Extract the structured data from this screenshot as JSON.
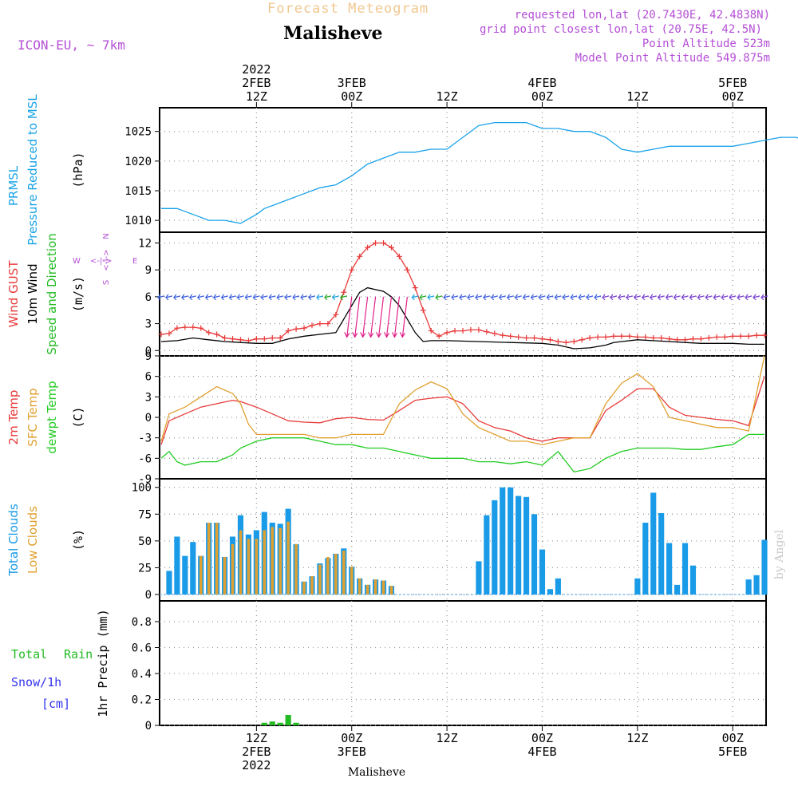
{
  "header": {
    "app_title": "Forecast Meteogram",
    "location": "Malisheve",
    "model": "ICON-EU,  ~ 7km",
    "requested": "requested lon,lat (20.7430E, 42.4838N)",
    "grid_point": "grid point closest lon,lat (20.75E, 42.5N)",
    "point_alt": "Point Altitude 523m",
    "model_alt": "Model Point Altitude 549.875m"
  },
  "footer": {
    "location": "Malisheve",
    "watermark": "by Angel"
  },
  "colors": {
    "pressure": "#1aa3e8",
    "gust": "#e83a3a",
    "wind": "#000000",
    "dir": "#22bb22",
    "temp2m": "#e83a3a",
    "sfc": "#e0a030",
    "dewpt": "#22cc22",
    "cloud_total": "#1a9be8",
    "cloud_low": "#e0a030",
    "rain": "#22bb22",
    "snow": "#3333ee",
    "title": "#f0c890",
    "info": "#b44fd6",
    "compass": "#b44fd6"
  },
  "time_axis": {
    "top_ticks": [
      {
        "x": 12,
        "lines": [
          "2022",
          "2FEB",
          "12Z"
        ]
      },
      {
        "x": 24,
        "lines": [
          "3FEB",
          "00Z"
        ]
      },
      {
        "x": 36,
        "lines": [
          "12Z"
        ]
      },
      {
        "x": 48,
        "lines": [
          "4FEB",
          "00Z"
        ]
      },
      {
        "x": 60,
        "lines": [
          "12Z"
        ]
      },
      {
        "x": 72,
        "lines": [
          "5FEB",
          "00Z"
        ]
      }
    ],
    "bottom_ticks": [
      {
        "x": 12,
        "lines": [
          "12Z",
          "2FEB",
          "2022"
        ]
      },
      {
        "x": 24,
        "lines": [
          "00Z",
          "3FEB"
        ]
      },
      {
        "x": 36,
        "lines": [
          "12Z"
        ]
      },
      {
        "x": 48,
        "lines": [
          "00Z",
          "4FEB"
        ]
      },
      {
        "x": 60,
        "lines": [
          "12Z"
        ]
      },
      {
        "x": 72,
        "lines": [
          "00Z",
          "5FEB"
        ]
      }
    ]
  },
  "panels": [
    {
      "id": "pressure",
      "labels": [
        {
          "text": "PRMSL",
          "color": "#1aa3e8"
        },
        {
          "text": "Pressure Reduced to MSL",
          "color": "#1aa3e8"
        }
      ],
      "unit": "(hPa)",
      "yticks": [
        "1010",
        "1015",
        "1020",
        "1025"
      ]
    },
    {
      "id": "wind",
      "labels": [
        {
          "text": "Wind GUST",
          "color": "#e83a3a"
        },
        {
          "text": "10m Wind",
          "color": "#000000"
        },
        {
          "text": "Speed and Direction",
          "color": "#22bb22"
        }
      ],
      "unit": "(m/s)",
      "yticks": [
        "0",
        "3",
        "6",
        "9",
        "12"
      ],
      "compass": {
        "n": "N",
        "s": "S",
        "e": "E",
        "w": "W",
        "arrow": "<-|->"
      }
    },
    {
      "id": "temp",
      "labels": [
        {
          "text": "2m Temp",
          "color": "#e83a3a"
        },
        {
          "text": "SFC Temp",
          "color": "#e0a030"
        },
        {
          "text": "dewpt Temp",
          "color": "#22cc22"
        }
      ],
      "unit": "(C)",
      "yticks": [
        "-9",
        "-6",
        "-3",
        "0",
        "3",
        "6",
        "9"
      ]
    },
    {
      "id": "clouds",
      "labels": [
        {
          "text": "Total Clouds",
          "color": "#1a9be8"
        },
        {
          "text": "Low Clouds",
          "color": "#e0a030"
        }
      ],
      "unit": "(%)",
      "yticks": [
        "0",
        "25",
        "50",
        "75",
        "100"
      ]
    },
    {
      "id": "precip",
      "labels": [
        {
          "text": "Total",
          "color": "#22bb22"
        },
        {
          "text": "Rain",
          "color": "#22bb22"
        },
        {
          "text": "Snow/1h",
          "color": "#3333ee"
        },
        {
          "text": "[cm]",
          "color": "#3333ee"
        }
      ],
      "unit": "1hr Precip (mm)",
      "yticks": [
        "0",
        "0.2",
        "0.4",
        "0.6",
        "0.8"
      ]
    }
  ],
  "chart_data": [
    {
      "type": "line",
      "name": "pressure",
      "x_unit": "hours since 2022-02-02 00Z",
      "ylim": [
        1008,
        1029
      ],
      "x": [
        0,
        2,
        4,
        6,
        8,
        10,
        12,
        13,
        14,
        16,
        18,
        20,
        22,
        24,
        26,
        28,
        30,
        32,
        34,
        36,
        38,
        40,
        42,
        44,
        46,
        48,
        50,
        52,
        54,
        56,
        58,
        60,
        62,
        64,
        66,
        72,
        74,
        76,
        78,
        80,
        82,
        84,
        86
      ],
      "values": [
        1012,
        1012,
        1011,
        1010,
        1010,
        1009.5,
        1011,
        1012,
        1012.5,
        1013.5,
        1014.5,
        1015.5,
        1016,
        1017.5,
        1019.5,
        1020.5,
        1021.5,
        1021.5,
        1022,
        1022,
        1024,
        1026,
        1026.5,
        1026.5,
        1026.5,
        1025.5,
        1025.5,
        1025,
        1025,
        1024,
        1022,
        1021.5,
        1022,
        1022.5,
        1022.5,
        1022.5,
        1023,
        1023.5,
        1024,
        1024,
        1023,
        1022.5,
        1022.5
      ]
    },
    {
      "type": "line",
      "name": "wind",
      "ylim": [
        -0.6,
        13.2
      ],
      "gust": {
        "x": [
          0,
          1,
          2,
          3,
          4,
          5,
          6,
          7,
          8,
          9,
          10,
          11,
          12,
          13,
          14,
          15,
          16,
          17,
          18,
          19,
          20,
          21,
          22,
          23,
          24,
          25,
          26,
          27,
          28,
          29,
          30,
          31,
          32,
          33,
          34,
          35,
          36,
          37,
          38,
          39,
          40,
          41,
          42,
          43,
          44,
          45,
          46,
          47,
          48,
          49,
          50,
          51,
          52,
          53,
          54,
          55,
          56,
          57,
          58,
          59,
          60,
          61,
          62,
          63,
          64,
          65,
          66,
          67,
          68,
          69,
          70,
          71,
          72,
          73,
          74,
          75,
          76
        ],
        "values": [
          1.8,
          1.9,
          2.5,
          2.6,
          2.6,
          2.5,
          2.0,
          1.8,
          1.4,
          1.3,
          1.2,
          1.1,
          1.3,
          1.3,
          1.4,
          1.4,
          2.2,
          2.4,
          2.5,
          2.8,
          3.0,
          3.0,
          4.0,
          6.5,
          9.0,
          10.5,
          11.5,
          12.0,
          12.0,
          11.5,
          10.5,
          9.0,
          7.0,
          4.5,
          2.2,
          1.6,
          2.0,
          2.2,
          2.2,
          2.3,
          2.3,
          2.1,
          1.9,
          1.7,
          1.6,
          1.5,
          1.4,
          1.4,
          1.3,
          1.2,
          1.0,
          0.9,
          1.0,
          1.2,
          1.4,
          1.5,
          1.5,
          1.6,
          1.6,
          1.6,
          1.5,
          1.5,
          1.4,
          1.4,
          1.3,
          1.2,
          1.2,
          1.3,
          1.3,
          1.4,
          1.5,
          1.5,
          1.6,
          1.6,
          1.6,
          1.7,
          1.7
        ]
      },
      "wind": {
        "x": [
          0,
          2,
          4,
          6,
          8,
          10,
          12,
          14,
          16,
          18,
          20,
          22,
          23,
          24,
          25,
          26,
          27,
          28,
          29,
          30,
          31,
          32,
          33,
          34,
          36,
          40,
          44,
          48,
          50,
          52,
          54,
          56,
          57,
          58,
          60,
          62,
          64,
          66,
          68,
          70,
          72,
          74,
          76
        ],
        "values": [
          1.0,
          1.1,
          1.4,
          1.2,
          1.0,
          0.9,
          0.8,
          0.8,
          1.3,
          1.6,
          1.8,
          2.0,
          3.5,
          5.0,
          6.5,
          7.0,
          6.8,
          6.6,
          6.0,
          5.0,
          3.5,
          2.0,
          1.0,
          1.1,
          1.1,
          1.0,
          0.9,
          0.8,
          0.6,
          0.2,
          0.3,
          0.6,
          0.9,
          1.0,
          1.2,
          1.1,
          1.0,
          0.9,
          0.8,
          0.8,
          0.8,
          0.7,
          0.7
        ]
      }
    },
    {
      "type": "line",
      "name": "temperature",
      "ylim": [
        -9,
        9
      ],
      "series": [
        {
          "name": "2m Temp",
          "x": [
            0,
            1,
            3,
            5,
            7,
            9,
            10,
            12,
            14,
            16,
            18,
            20,
            22,
            24,
            26,
            28,
            30,
            32,
            34,
            36,
            38,
            40,
            42,
            44,
            46,
            48,
            50,
            52,
            54,
            56,
            58,
            60,
            62,
            64,
            66,
            68,
            70,
            72,
            74,
            76
          ],
          "values": [
            -4,
            -0.5,
            0.5,
            1.5,
            2,
            2.5,
            2.3,
            1.5,
            0.5,
            -0.5,
            -0.7,
            -0.8,
            -0.2,
            0,
            -0.3,
            -0.4,
            1,
            2.5,
            2.8,
            3,
            2,
            -0.5,
            -1.5,
            -2,
            -3,
            -3.5,
            -3,
            -3,
            -3,
            1.0,
            2.5,
            4.2,
            4.2,
            1.5,
            0.3,
            0,
            -0.3,
            -0.5,
            -1.2,
            6
          ]
        },
        {
          "name": "SFC Temp",
          "x": [
            0,
            1,
            3,
            5,
            7,
            9,
            10,
            11,
            12,
            14,
            16,
            18,
            20,
            22,
            24,
            26,
            28,
            30,
            32,
            34,
            36,
            38,
            40,
            42,
            44,
            46,
            48,
            50,
            52,
            54,
            56,
            58,
            60,
            62,
            64,
            66,
            68,
            70,
            72,
            74,
            76
          ],
          "values": [
            -3.5,
            0.5,
            1.5,
            3,
            4.5,
            3.5,
            2,
            -1,
            -2.5,
            -2.5,
            -2.5,
            -2.5,
            -3,
            -3,
            -2.5,
            -2.5,
            -2.5,
            2,
            4,
            5.2,
            4.2,
            0.5,
            -1.5,
            -2.5,
            -3.5,
            -3.5,
            -4,
            -3.5,
            -3,
            -3,
            2,
            5,
            6.4,
            4.5,
            0,
            -0.5,
            -1,
            -1.5,
            -1.5,
            -2,
            9
          ]
        },
        {
          "name": "dewpt Temp",
          "x": [
            0,
            1,
            2,
            3,
            5,
            7,
            9,
            10,
            12,
            14,
            16,
            18,
            20,
            22,
            24,
            26,
            28,
            30,
            32,
            34,
            36,
            38,
            40,
            42,
            44,
            46,
            48,
            50,
            52,
            54,
            56,
            58,
            60,
            62,
            64,
            66,
            68,
            70,
            72,
            74,
            76
          ],
          "values": [
            -6,
            -5,
            -6.5,
            -7,
            -6.5,
            -6.5,
            -5.5,
            -4.5,
            -3.5,
            -3,
            -3,
            -3,
            -3.5,
            -4,
            -4,
            -4.5,
            -4.5,
            -5,
            -5.5,
            -6,
            -6,
            -6,
            -6.5,
            -6.5,
            -6.8,
            -6.5,
            -7,
            -5,
            -8,
            -7.5,
            -6,
            -5,
            -4.5,
            -4.5,
            -4.5,
            -4.7,
            -4.7,
            -4.3,
            -4,
            -2.5,
            -2.5
          ]
        }
      ]
    },
    {
      "type": "bar",
      "name": "clouds",
      "ylim": [
        0,
        100
      ],
      "x": [
        0,
        1,
        2,
        3,
        4,
        5,
        6,
        7,
        8,
        9,
        10,
        11,
        12,
        13,
        14,
        15,
        16,
        17,
        18,
        19,
        20,
        21,
        22,
        23,
        24,
        25,
        26,
        27,
        28,
        29,
        30,
        31,
        32,
        33,
        34,
        35,
        36,
        37,
        38,
        39,
        40,
        41,
        42,
        43,
        44,
        45,
        46,
        47,
        48,
        49,
        50,
        51,
        52,
        53,
        54,
        55,
        56,
        57,
        58,
        59,
        60,
        61,
        62,
        63,
        64,
        65,
        66,
        67,
        68,
        69,
        70,
        71,
        72,
        73,
        74,
        75,
        76
      ],
      "series": [
        {
          "name": "Total Clouds",
          "values": [
            0,
            22,
            54,
            36,
            49,
            36,
            67,
            67,
            35,
            54,
            74,
            56,
            60,
            77,
            67,
            66,
            80,
            47,
            12,
            17,
            29,
            34,
            38,
            43,
            26,
            15,
            9,
            14,
            13,
            8,
            0,
            0,
            0,
            0,
            0,
            0,
            0,
            0,
            0,
            0,
            31,
            74,
            88,
            100,
            100,
            92,
            91,
            75,
            42,
            5,
            15,
            0,
            0,
            0,
            0,
            0,
            0,
            0,
            0,
            0,
            15,
            67,
            95,
            76,
            48,
            9,
            48,
            27,
            0,
            0,
            0,
            0,
            0,
            0,
            14,
            18,
            51
          ]
        },
        {
          "name": "Low Clouds",
          "values": [
            0,
            0,
            0,
            0,
            0,
            36,
            67,
            67,
            35,
            47,
            60,
            52,
            52,
            60,
            63,
            62,
            68,
            47,
            12,
            17,
            28,
            35,
            38,
            41,
            26,
            15,
            9,
            14,
            13,
            8,
            0,
            0,
            0,
            0,
            0,
            0,
            0,
            0,
            0,
            0,
            0,
            0,
            0,
            0,
            0,
            0,
            0,
            0,
            0,
            0,
            0,
            0,
            0,
            0,
            0,
            0,
            0,
            0,
            0,
            0,
            0,
            0,
            0,
            0,
            0,
            0,
            0,
            0,
            0,
            0,
            0,
            0,
            0,
            0,
            0,
            0,
            0
          ]
        }
      ]
    },
    {
      "type": "bar",
      "name": "precipitation",
      "ylim": [
        0,
        0.96
      ],
      "x": [
        13,
        14,
        15,
        16,
        17
      ],
      "values": [
        0.02,
        0.03,
        0.02,
        0.08,
        0.02
      ]
    }
  ]
}
